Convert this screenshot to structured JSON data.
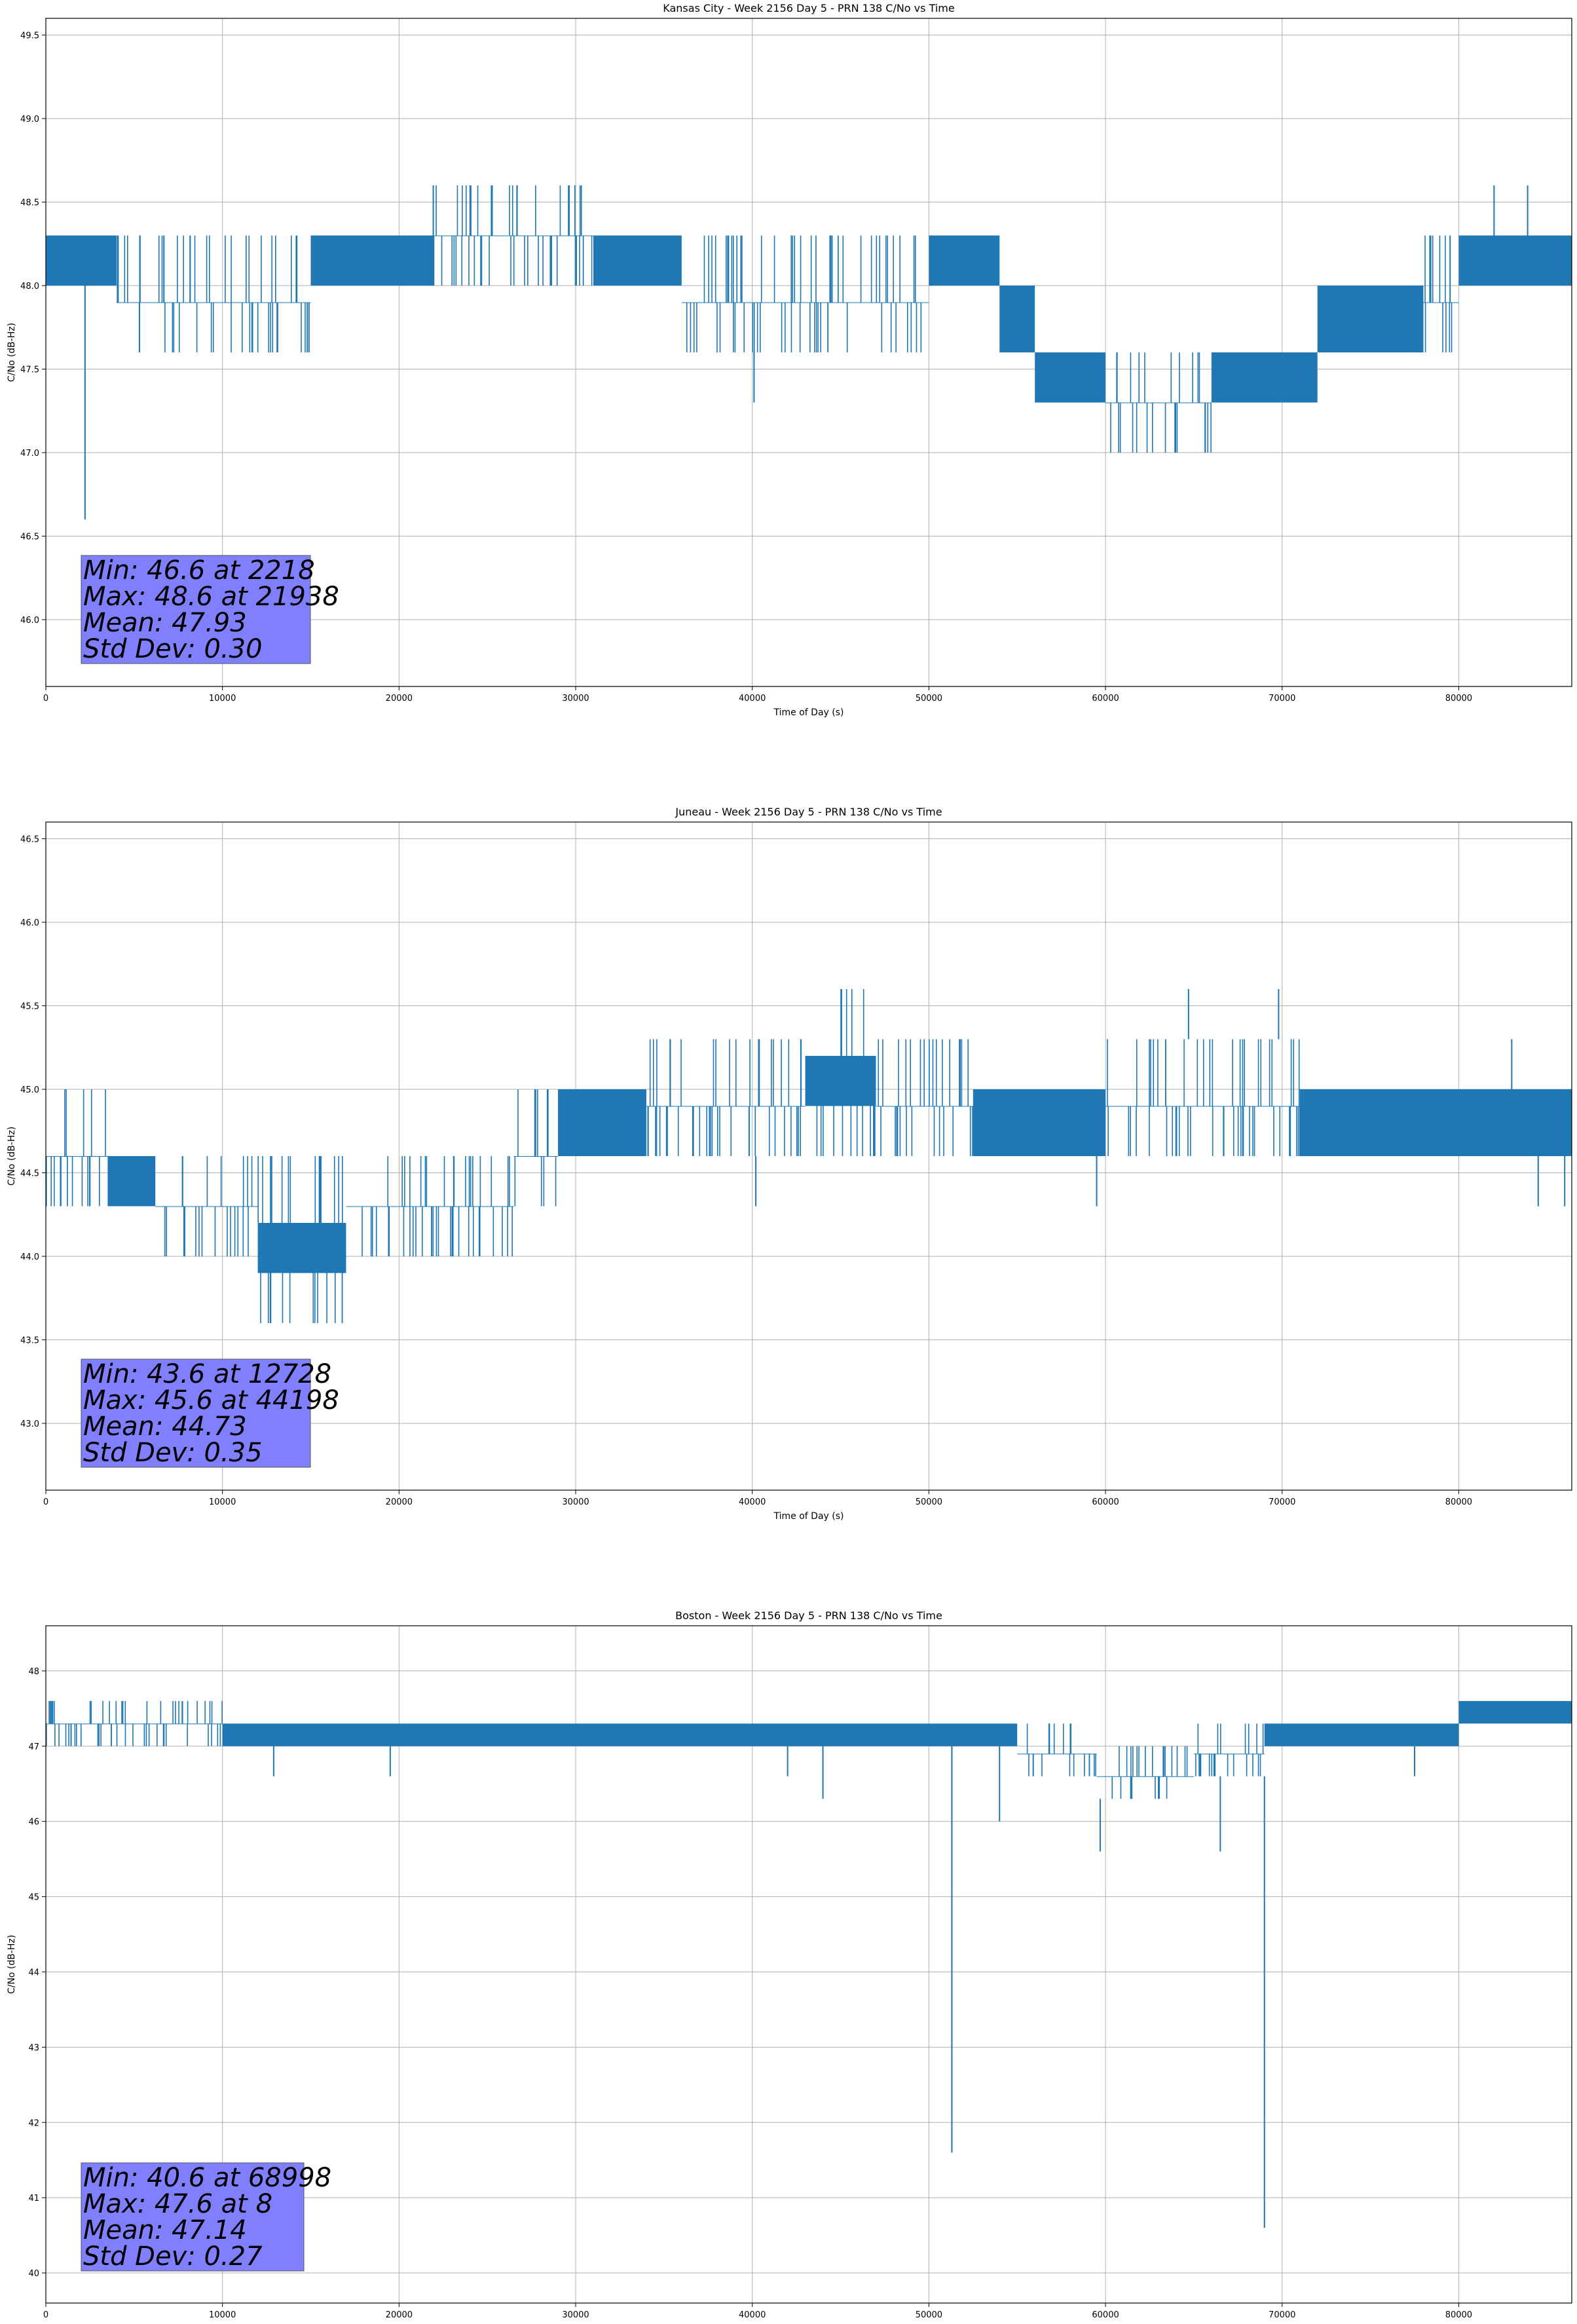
{
  "chart_data": [
    {
      "type": "line",
      "title": "Kansas City - Week 2156 Day 5 - PRN 138 C/No vs Time",
      "xlabel": "Time of Day (s)",
      "ylabel": "C/No (dB-Hz)",
      "xlim": [
        0,
        86400
      ],
      "ylim": [
        45.6,
        49.6
      ],
      "xticks": [
        0,
        10000,
        20000,
        30000,
        40000,
        50000,
        60000,
        70000,
        80000
      ],
      "yticks": [
        46.0,
        46.5,
        47.0,
        47.5,
        48.0,
        48.5,
        49.0,
        49.5
      ],
      "ytick_decimals": 1,
      "grid": true,
      "series_color": "#1f77b4",
      "series": [
        {
          "segments": [
            {
              "x": [
                0,
                4000
              ],
              "band": [
                48.0,
                48.3
              ]
            },
            {
              "x": [
                4000,
                15000
              ],
              "band": [
                47.6,
                48.3
              ]
            },
            {
              "x": [
                15000,
                22000
              ],
              "band": [
                48.0,
                48.3
              ]
            },
            {
              "x": [
                22000,
                31000
              ],
              "band": [
                48.0,
                48.6
              ]
            },
            {
              "x": [
                31000,
                36000
              ],
              "band": [
                48.0,
                48.3
              ]
            },
            {
              "x": [
                36000,
                50000
              ],
              "band": [
                47.6,
                48.3
              ]
            },
            {
              "x": [
                50000,
                54000
              ],
              "band": [
                48.0,
                48.3
              ]
            },
            {
              "x": [
                54000,
                56000
              ],
              "band": [
                47.6,
                48.0
              ]
            },
            {
              "x": [
                56000,
                60000
              ],
              "band": [
                47.3,
                47.6
              ]
            },
            {
              "x": [
                60000,
                66000
              ],
              "band": [
                47.0,
                47.6
              ]
            },
            {
              "x": [
                66000,
                72000
              ],
              "band": [
                47.3,
                47.6
              ]
            },
            {
              "x": [
                72000,
                78000
              ],
              "band": [
                47.6,
                48.0
              ]
            },
            {
              "x": [
                78000,
                80000
              ],
              "band": [
                47.6,
                48.3
              ]
            },
            {
              "x": [
                80000,
                86400
              ],
              "band": [
                48.0,
                48.3
              ]
            }
          ],
          "spikes": [
            [
              2218,
              46.6
            ],
            [
              40100,
              47.3
            ],
            [
              82000,
              48.6
            ],
            [
              83900,
              48.6
            ],
            [
              21938,
              48.6
            ]
          ]
        }
      ],
      "annotation": {
        "lines": [
          "Min: 46.6 at 2218",
          "Max: 48.6 at 21938",
          "Mean: 47.93",
          "Std Dev: 0.30"
        ],
        "box_color": "#8080ff"
      }
    },
    {
      "type": "line",
      "title": "Juneau - Week 2156 Day 5 - PRN 138 C/No vs Time",
      "xlabel": "Time of Day (s)",
      "ylabel": "C/No (dB-Hz)",
      "xlim": [
        0,
        86400
      ],
      "ylim": [
        42.6,
        46.6
      ],
      "xticks": [
        0,
        10000,
        20000,
        30000,
        40000,
        50000,
        60000,
        70000,
        80000
      ],
      "yticks": [
        43.0,
        43.5,
        44.0,
        44.5,
        45.0,
        45.5,
        46.0,
        46.5
      ],
      "ytick_decimals": 1,
      "grid": true,
      "series_color": "#1f77b4",
      "series": [
        {
          "segments": [
            {
              "x": [
                0,
                3500
              ],
              "band": [
                44.3,
                45.0
              ]
            },
            {
              "x": [
                3500,
                6200
              ],
              "band": [
                44.3,
                44.6
              ]
            },
            {
              "x": [
                6200,
                12000
              ],
              "band": [
                44.0,
                44.6
              ]
            },
            {
              "x": [
                12000,
                17000
              ],
              "band": [
                43.6,
                44.6
              ]
            },
            {
              "x": [
                17000,
                26500
              ],
              "band": [
                44.0,
                44.6
              ]
            },
            {
              "x": [
                26500,
                29000
              ],
              "band": [
                44.3,
                45.0
              ]
            },
            {
              "x": [
                29000,
                34000
              ],
              "band": [
                44.6,
                45.0
              ]
            },
            {
              "x": [
                34000,
                37000
              ],
              "band": [
                44.6,
                45.3
              ]
            },
            {
              "x": [
                37000,
                43000
              ],
              "band": [
                44.6,
                45.3
              ]
            },
            {
              "x": [
                43000,
                47000
              ],
              "band": [
                44.6,
                45.6
              ]
            },
            {
              "x": [
                47000,
                52500
              ],
              "band": [
                44.6,
                45.3
              ]
            },
            {
              "x": [
                52500,
                60000
              ],
              "band": [
                44.6,
                45.0
              ]
            },
            {
              "x": [
                60000,
                71000
              ],
              "band": [
                44.6,
                45.3
              ]
            },
            {
              "x": [
                71000,
                86400
              ],
              "band": [
                44.6,
                45.0
              ]
            }
          ],
          "spikes": [
            [
              12728,
              43.6
            ],
            [
              40200,
              44.3
            ],
            [
              44198,
              45.6
            ],
            [
              64700,
              45.6
            ],
            [
              69800,
              45.6
            ],
            [
              59500,
              44.3
            ],
            [
              83000,
              45.3
            ],
            [
              84500,
              44.3
            ],
            [
              86000,
              44.3
            ]
          ]
        }
      ],
      "annotation": {
        "lines": [
          "Min: 43.6 at 12728",
          "Max: 45.6 at 44198",
          "Mean: 44.73",
          "Std Dev: 0.35"
        ],
        "box_color": "#8080ff"
      }
    },
    {
      "type": "line",
      "title": "Boston - Week 2156 Day 5 - PRN 138 C/No vs Time",
      "xlabel": "Time of Day (s)",
      "ylabel": "C/No (dB-Hz)",
      "xlim": [
        0,
        86400
      ],
      "ylim": [
        39.6,
        48.6
      ],
      "xticks": [
        0,
        10000,
        20000,
        30000,
        40000,
        50000,
        60000,
        70000,
        80000
      ],
      "yticks": [
        40,
        41,
        42,
        43,
        44,
        45,
        46,
        47,
        48
      ],
      "ytick_decimals": 0,
      "grid": true,
      "series_color": "#1f77b4",
      "series": [
        {
          "segments": [
            {
              "x": [
                0,
                10000
              ],
              "band": [
                47.0,
                47.6
              ]
            },
            {
              "x": [
                10000,
                55000
              ],
              "band": [
                47.0,
                47.3
              ]
            },
            {
              "x": [
                55000,
                59500
              ],
              "band": [
                46.6,
                47.3
              ]
            },
            {
              "x": [
                59500,
                65000
              ],
              "band": [
                46.3,
                47.0
              ]
            },
            {
              "x": [
                65000,
                69000
              ],
              "band": [
                46.6,
                47.3
              ]
            },
            {
              "x": [
                69000,
                80000
              ],
              "band": [
                47.0,
                47.3
              ]
            },
            {
              "x": [
                80000,
                86400
              ],
              "band": [
                47.3,
                47.6
              ]
            }
          ],
          "spikes": [
            [
              8,
              47.6
            ],
            [
              12900,
              46.6
            ],
            [
              19500,
              46.6
            ],
            [
              42000,
              46.6
            ],
            [
              44000,
              46.3
            ],
            [
              51300,
              41.6
            ],
            [
              54000,
              46.0
            ],
            [
              59700,
              45.6
            ],
            [
              66500,
              45.6
            ],
            [
              68998,
              40.6
            ],
            [
              77500,
              46.6
            ]
          ]
        }
      ],
      "annotation": {
        "lines": [
          "Min: 40.6 at 68998",
          "Max: 47.6 at 8",
          "Mean: 47.14",
          "Std Dev: 0.27"
        ],
        "box_color": "#8080ff"
      }
    }
  ]
}
